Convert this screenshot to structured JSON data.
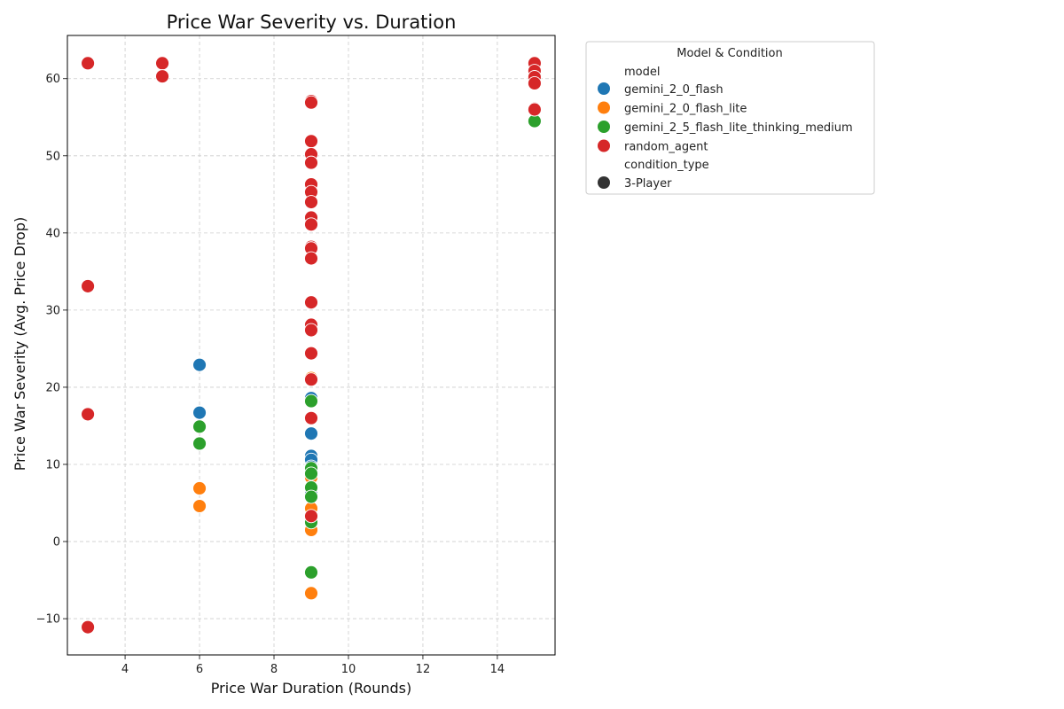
{
  "chart_data": {
    "type": "scatter",
    "title": "Price War Severity vs. Duration",
    "xlabel": "Price War Duration (Rounds)",
    "ylabel": "Price War Severity (Avg. Price Drop)",
    "xlim": [
      2.45,
      15.55
    ],
    "ylim": [
      -14.7,
      65.6
    ],
    "xticks": [
      4,
      6,
      8,
      10,
      12,
      14
    ],
    "yticks": [
      -10,
      0,
      10,
      20,
      30,
      40,
      50,
      60
    ],
    "xtick_labels": [
      "4",
      "6",
      "8",
      "10",
      "12",
      "14"
    ],
    "ytick_labels": [
      "−10",
      "0",
      "10",
      "20",
      "30",
      "40",
      "50",
      "60"
    ],
    "grid": true,
    "legend": {
      "title": "Model & Condition",
      "placement": "outside-right-top",
      "hue_header": "model",
      "style_header": "condition_type",
      "style_entries": [
        {
          "label": "3-Player",
          "color": "#333333"
        }
      ]
    },
    "series": [
      {
        "name": "gemini_2_0_flash",
        "color": "#1f77b4",
        "points": [
          [
            6,
            22.9
          ],
          [
            6,
            16.7
          ],
          [
            9,
            18.6
          ],
          [
            9,
            14.0
          ],
          [
            9,
            11.1
          ],
          [
            9,
            10.6
          ],
          [
            9,
            9.7
          ],
          [
            9,
            6.2
          ]
        ]
      },
      {
        "name": "gemini_2_0_flash_lite",
        "color": "#ff7f0e",
        "points": [
          [
            6,
            6.9
          ],
          [
            6,
            4.6
          ],
          [
            9,
            21.2
          ],
          [
            9,
            8.3
          ],
          [
            9,
            7.0
          ],
          [
            9,
            4.3
          ],
          [
            9,
            1.5
          ],
          [
            9,
            -6.7
          ]
        ]
      },
      {
        "name": "gemini_2_5_flash_lite_thinking_medium",
        "color": "#2ca02c",
        "points": [
          [
            6,
            14.9
          ],
          [
            6,
            12.7
          ],
          [
            9,
            18.2
          ],
          [
            9,
            9.5
          ],
          [
            9,
            8.8
          ],
          [
            9,
            7.0
          ],
          [
            9,
            5.8
          ],
          [
            9,
            2.5
          ],
          [
            9,
            -4.0
          ],
          [
            15,
            54.5
          ]
        ]
      },
      {
        "name": "random_agent",
        "color": "#d62728",
        "points": [
          [
            3,
            62.0
          ],
          [
            3,
            33.1
          ],
          [
            3,
            16.5
          ],
          [
            3,
            -11.1
          ],
          [
            5,
            62.0
          ],
          [
            5,
            60.3
          ],
          [
            9,
            57.1
          ],
          [
            9,
            56.9
          ],
          [
            9,
            51.9
          ],
          [
            9,
            50.2
          ],
          [
            9,
            49.1
          ],
          [
            9,
            46.3
          ],
          [
            9,
            45.3
          ],
          [
            9,
            44.0
          ],
          [
            9,
            42.0
          ],
          [
            9,
            41.1
          ],
          [
            9,
            38.2
          ],
          [
            9,
            38.0
          ],
          [
            9,
            36.7
          ],
          [
            9,
            31.0
          ],
          [
            9,
            28.1
          ],
          [
            9,
            27.4
          ],
          [
            9,
            24.4
          ],
          [
            9,
            21.0
          ],
          [
            9,
            16.0
          ],
          [
            9,
            3.3
          ],
          [
            15,
            62.0
          ],
          [
            15,
            61.0
          ],
          [
            15,
            60.2
          ],
          [
            15,
            59.4
          ],
          [
            15,
            56.1
          ],
          [
            15,
            56.0
          ]
        ]
      }
    ]
  }
}
